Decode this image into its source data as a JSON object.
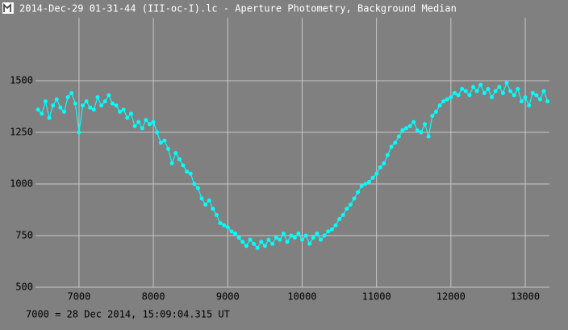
{
  "chart_data": {
    "type": "line",
    "title": "2014-Dec-29 01-31-44 (III-oc-I).lc - Aperture Photometry, Background Median",
    "annotation": "7000 = 28 Dec 2014, 15:09:04.315 UT",
    "x": [
      6450,
      6500,
      6550,
      6600,
      6650,
      6700,
      6750,
      6800,
      6850,
      6900,
      6950,
      7000,
      7050,
      7100,
      7150,
      7200,
      7250,
      7300,
      7350,
      7400,
      7450,
      7500,
      7550,
      7600,
      7650,
      7700,
      7750,
      7800,
      7850,
      7900,
      7950,
      8000,
      8050,
      8100,
      8150,
      8200,
      8250,
      8300,
      8350,
      8400,
      8450,
      8500,
      8550,
      8600,
      8650,
      8700,
      8750,
      8800,
      8850,
      8900,
      8950,
      9000,
      9050,
      9100,
      9150,
      9200,
      9250,
      9300,
      9350,
      9400,
      9450,
      9500,
      9550,
      9600,
      9650,
      9700,
      9750,
      9800,
      9850,
      9900,
      9950,
      10000,
      10050,
      10100,
      10150,
      10200,
      10250,
      10300,
      10350,
      10400,
      10450,
      10500,
      10550,
      10600,
      10650,
      10700,
      10750,
      10800,
      10850,
      10900,
      10950,
      11000,
      11050,
      11100,
      11150,
      11200,
      11250,
      11300,
      11350,
      11400,
      11450,
      11500,
      11550,
      11600,
      11650,
      11700,
      11750,
      11800,
      11850,
      11900,
      11950,
      12000,
      12050,
      12100,
      12150,
      12200,
      12250,
      12300,
      12350,
      12400,
      12450,
      12500,
      12550,
      12600,
      12650,
      12700,
      12750,
      12800,
      12850,
      12900,
      12950,
      13000,
      13050,
      13100,
      13150,
      13200,
      13250,
      13300
    ],
    "series": [
      {
        "color": "#00ffff",
        "values": [
          1360,
          1340,
          1400,
          1320,
          1380,
          1410,
          1370,
          1350,
          1420,
          1440,
          1390,
          1250,
          1380,
          1400,
          1370,
          1360,
          1420,
          1380,
          1400,
          1430,
          1390,
          1380,
          1350,
          1360,
          1320,
          1340,
          1280,
          1300,
          1270,
          1310,
          1290,
          1300,
          1250,
          1200,
          1210,
          1170,
          1100,
          1150,
          1120,
          1090,
          1060,
          1050,
          1000,
          980,
          930,
          900,
          920,
          880,
          850,
          810,
          800,
          790,
          770,
          760,
          740,
          720,
          700,
          730,
          710,
          690,
          720,
          700,
          730,
          710,
          740,
          730,
          760,
          720,
          750,
          740,
          760,
          730,
          750,
          710,
          740,
          760,
          730,
          750,
          770,
          780,
          800,
          830,
          850,
          880,
          900,
          930,
          960,
          990,
          1000,
          1010,
          1030,
          1050,
          1080,
          1100,
          1140,
          1180,
          1200,
          1230,
          1260,
          1270,
          1280,
          1300,
          1260,
          1250,
          1290,
          1230,
          1330,
          1350,
          1380,
          1400,
          1410,
          1420,
          1440,
          1430,
          1460,
          1450,
          1430,
          1470,
          1450,
          1480,
          1440,
          1460,
          1420,
          1450,
          1470,
          1440,
          1490,
          1450,
          1430,
          1460,
          1400,
          1420,
          1380,
          1440,
          1430,
          1410,
          1450,
          1400
        ]
      }
    ],
    "xlim": [
      6415,
      13325
    ],
    "ylim": [
      500,
      1805
    ],
    "xticks": [
      7000,
      8000,
      9000,
      10000,
      11000,
      12000,
      13000
    ],
    "yticks": [
      500,
      750,
      1000,
      1250,
      1500
    ],
    "grid": true
  }
}
